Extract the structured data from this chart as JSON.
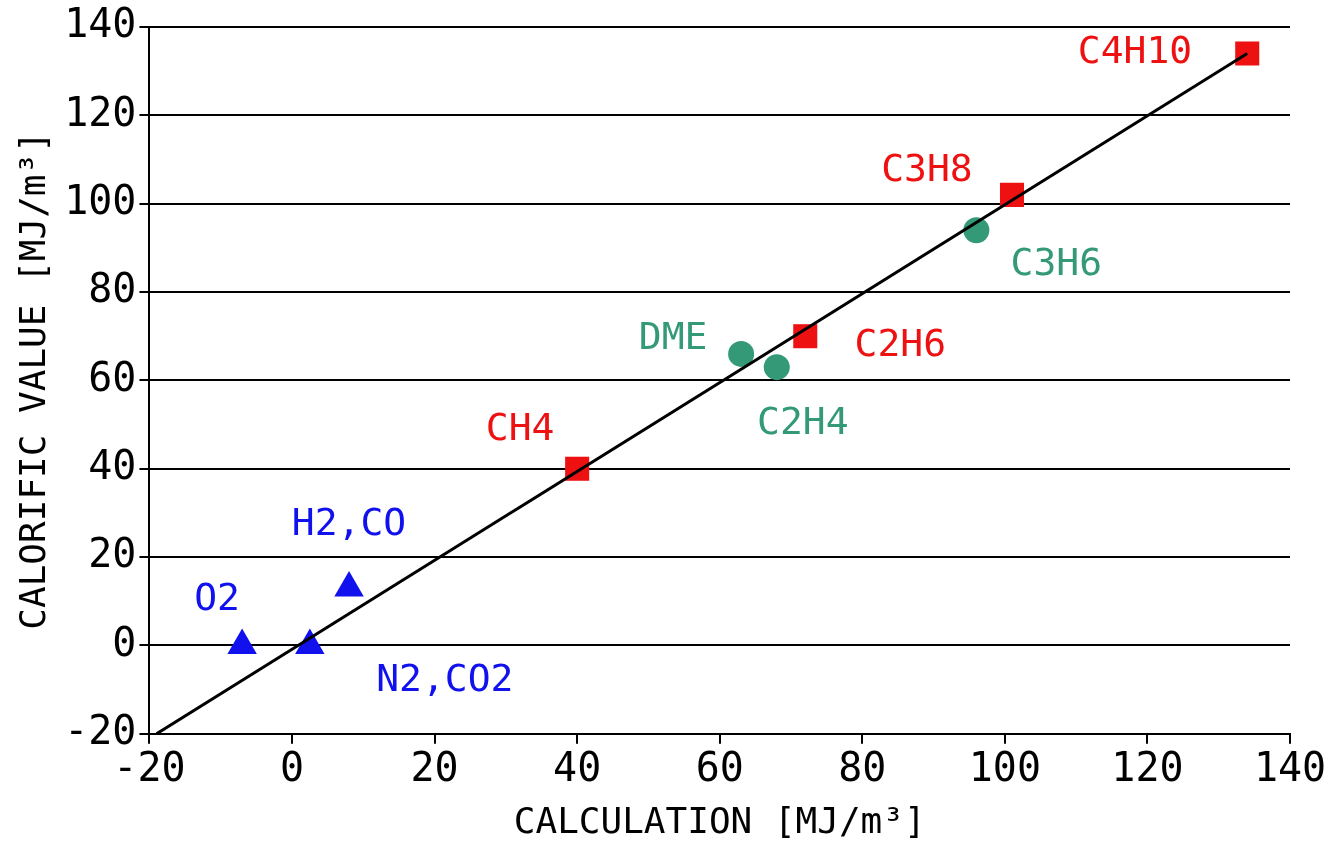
{
  "chart_data": {
    "type": "scatter",
    "xlabel": "CALCULATION [MJ/m³]",
    "ylabel": "CALORIFIC VALUE [MJ/m³]",
    "xlim": [
      -20,
      140
    ],
    "ylim": [
      -20,
      140
    ],
    "xticks": [
      -20,
      0,
      20,
      40,
      60,
      80,
      100,
      120,
      140
    ],
    "yticks": [
      -20,
      0,
      20,
      40,
      60,
      80,
      100,
      120,
      140
    ],
    "grid": "y",
    "legend": false,
    "series": [
      {
        "type": "line",
        "color": "#000000",
        "marker": "none",
        "x": [
          -19,
          134
        ],
        "values": [
          -20,
          134
        ]
      },
      {
        "color": "#ee1111",
        "marker": "square",
        "x": [
          40,
          72,
          101,
          134
        ],
        "values": [
          40,
          70,
          102,
          134
        ]
      },
      {
        "color": "#339977",
        "marker": "circle",
        "x": [
          63,
          68,
          96
        ],
        "values": [
          66,
          63,
          94
        ]
      },
      {
        "color": "#1111ee",
        "marker": "triangle",
        "x": [
          -7,
          2.5,
          8
        ],
        "values": [
          0,
          0,
          13
        ]
      }
    ],
    "annotations": [
      {
        "text": "C4H10",
        "x": 134,
        "y": 134
      },
      {
        "text": "C3H8",
        "x": 101,
        "y": 102
      },
      {
        "text": "C3H6",
        "x": 96,
        "y": 94
      },
      {
        "text": "DME",
        "x": 63,
        "y": 66
      },
      {
        "text": "C2H6",
        "x": 72,
        "y": 70
      },
      {
        "text": "C2H4",
        "x": 68,
        "y": 63
      },
      {
        "text": "CH4",
        "x": 40,
        "y": 40
      },
      {
        "text": "H2,CO",
        "x": 8,
        "y": 13
      },
      {
        "text": "O2",
        "x": -7,
        "y": 0
      },
      {
        "text": "N2,CO2",
        "x": 2.5,
        "y": 0
      }
    ]
  }
}
